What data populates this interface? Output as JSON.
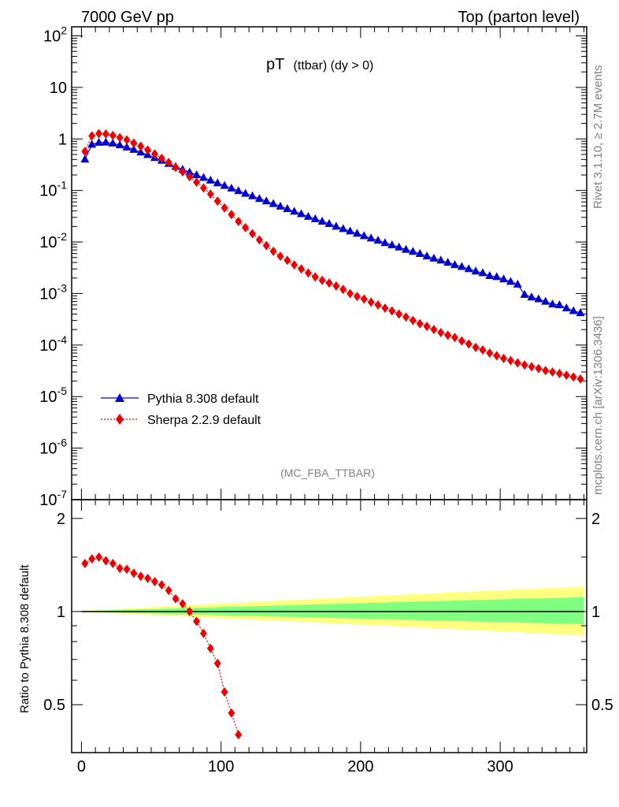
{
  "header": {
    "left_label": "7000 GeV pp",
    "right_label": "Top (parton level)"
  },
  "side": {
    "rivet_label": "Rivet 3.1.10, ≥ 2.7M events",
    "source_label": "mcplots.cern.ch [arXiv:1306.3436]"
  },
  "chart_data": [
    {
      "type": "line",
      "title_main": "pT",
      "title_sub": "(ttbar) (dy > 0)",
      "analysis_tag": "(MC_FBA_TTBAR)",
      "y_scale": "log",
      "xlim": [
        -7,
        362
      ],
      "ylim": [
        1e-07,
        150
      ],
      "y_tick_labels": [
        "10^2",
        "10",
        "1",
        "10^-1",
        "10^-2",
        "10^-3",
        "10^-4",
        "10^-5",
        "10^-6",
        "10^-7"
      ],
      "legend_position": "bottom-left",
      "series": [
        {
          "name": "Pythia 8.308 default",
          "color": "#0000cc",
          "marker": "triangle",
          "line": "solid",
          "x": [
            2.5,
            7.5,
            12.5,
            17.5,
            22.5,
            27.5,
            32.5,
            37.5,
            42.5,
            47.5,
            52.5,
            57.5,
            62.5,
            67.5,
            72.5,
            77.5,
            82.5,
            87.5,
            92.5,
            97.5,
            102.5,
            107.5,
            112.5,
            117.5,
            122.5,
            127.5,
            132.5,
            137.5,
            142.5,
            147.5,
            152.5,
            157.5,
            162.5,
            167.5,
            172.5,
            177.5,
            182.5,
            187.5,
            192.5,
            197.5,
            202.5,
            207.5,
            212.5,
            217.5,
            222.5,
            227.5,
            232.5,
            237.5,
            242.5,
            247.5,
            252.5,
            257.5,
            262.5,
            267.5,
            272.5,
            277.5,
            282.5,
            287.5,
            292.5,
            297.5,
            302.5,
            307.5,
            312.5,
            317.5,
            322.5,
            327.5,
            332.5,
            337.5,
            342.5,
            347.5,
            352.5,
            357.5
          ],
          "y": [
            0.4,
            0.78,
            0.85,
            0.86,
            0.82,
            0.76,
            0.69,
            0.62,
            0.55,
            0.49,
            0.43,
            0.38,
            0.33,
            0.29,
            0.255,
            0.225,
            0.2,
            0.177,
            0.157,
            0.139,
            0.124,
            0.11,
            0.098,
            0.087,
            0.078,
            0.069,
            0.062,
            0.055,
            0.049,
            0.044,
            0.039,
            0.035,
            0.031,
            0.028,
            0.025,
            0.0225,
            0.02,
            0.018,
            0.0162,
            0.0146,
            0.0131,
            0.0118,
            0.0107,
            0.0096,
            0.0087,
            0.0079,
            0.0071,
            0.0065,
            0.0059,
            0.0053,
            0.0048,
            0.0044,
            0.004,
            0.0036,
            0.0033,
            0.003,
            0.0027,
            0.0025,
            0.0022,
            0.0021,
            0.0019,
            0.0017,
            0.0015,
            0.00095,
            0.00085,
            0.00078,
            0.0007,
            0.00062,
            0.0006,
            0.00052,
            0.00046,
            0.00042
          ]
        },
        {
          "name": "Sherpa 2.2.9 default",
          "color": "#ee0000",
          "marker": "diamond",
          "line": "dotted",
          "x": [
            2.5,
            7.5,
            12.5,
            17.5,
            22.5,
            27.5,
            32.5,
            37.5,
            42.5,
            47.5,
            52.5,
            57.5,
            62.5,
            67.5,
            72.5,
            77.5,
            82.5,
            87.5,
            92.5,
            97.5,
            102.5,
            107.5,
            112.5,
            117.5,
            122.5,
            127.5,
            132.5,
            137.5,
            142.5,
            147.5,
            152.5,
            157.5,
            162.5,
            167.5,
            172.5,
            177.5,
            182.5,
            187.5,
            192.5,
            197.5,
            202.5,
            207.5,
            212.5,
            217.5,
            222.5,
            227.5,
            232.5,
            237.5,
            242.5,
            247.5,
            252.5,
            257.5,
            262.5,
            267.5,
            272.5,
            277.5,
            282.5,
            287.5,
            292.5,
            297.5,
            302.5,
            307.5,
            312.5,
            317.5,
            322.5,
            327.5,
            332.5,
            337.5,
            342.5,
            347.5,
            352.5,
            357.5
          ],
          "y": [
            0.57,
            1.15,
            1.27,
            1.25,
            1.17,
            1.06,
            0.96,
            0.83,
            0.72,
            0.61,
            0.51,
            0.42,
            0.35,
            0.28,
            0.23,
            0.185,
            0.145,
            0.112,
            0.085,
            0.062,
            0.046,
            0.034,
            0.025,
            0.019,
            0.0145,
            0.011,
            0.0085,
            0.0066,
            0.0053,
            0.0044,
            0.0036,
            0.003,
            0.0025,
            0.0021,
            0.0018,
            0.0016,
            0.0014,
            0.0012,
            0.001,
            0.00088,
            0.00078,
            0.00068,
            0.0006,
            0.00052,
            0.00046,
            0.0004,
            0.00035,
            0.0003,
            0.00026,
            0.00023,
            0.0002,
            0.000175,
            0.000155,
            0.00014,
            0.00012,
            0.000105,
            9e-05,
            8e-05,
            7e-05,
            6.2e-05,
            5.5e-05,
            5e-05,
            4.5e-05,
            4.1e-05,
            3.8e-05,
            3.5e-05,
            3.2e-05,
            3e-05,
            2.8e-05,
            2.6e-05,
            2.4e-05,
            2.2e-05
          ]
        }
      ],
      "legend": [
        "Pythia 8.308 default",
        "Sherpa 2.2.9 default"
      ]
    },
    {
      "type": "line",
      "ylabel": "Ratio to Pythia 8.308 default",
      "xlim": [
        -7,
        362
      ],
      "ylim": [
        0.35,
        2.3
      ],
      "x_tick_labels": [
        "0",
        "100",
        "200",
        "300"
      ],
      "y_tick_labels": [
        "2",
        "1",
        "0.5"
      ],
      "reference_line": 1,
      "bands": [
        {
          "name": "outer band",
          "color": "#ffff80"
        },
        {
          "name": "inner band",
          "color": "#80ff80"
        }
      ],
      "series": [
        {
          "name": "Sherpa 2.2.9 default / Pythia 8.308 default",
          "color": "#ee0000",
          "marker": "diamond",
          "x": [
            2.5,
            7.5,
            12.5,
            17.5,
            22.5,
            27.5,
            32.5,
            37.5,
            42.5,
            47.5,
            52.5,
            57.5,
            62.5,
            67.5,
            72.5,
            77.5,
            82.5,
            87.5,
            92.5,
            97.5,
            102.5,
            107.5,
            112.5
          ],
          "y": [
            1.43,
            1.48,
            1.5,
            1.46,
            1.43,
            1.38,
            1.37,
            1.33,
            1.3,
            1.28,
            1.25,
            1.22,
            1.17,
            1.1,
            1.06,
            1.0,
            0.93,
            0.85,
            0.76,
            0.68,
            0.55,
            0.47,
            0.4
          ]
        }
      ]
    }
  ]
}
